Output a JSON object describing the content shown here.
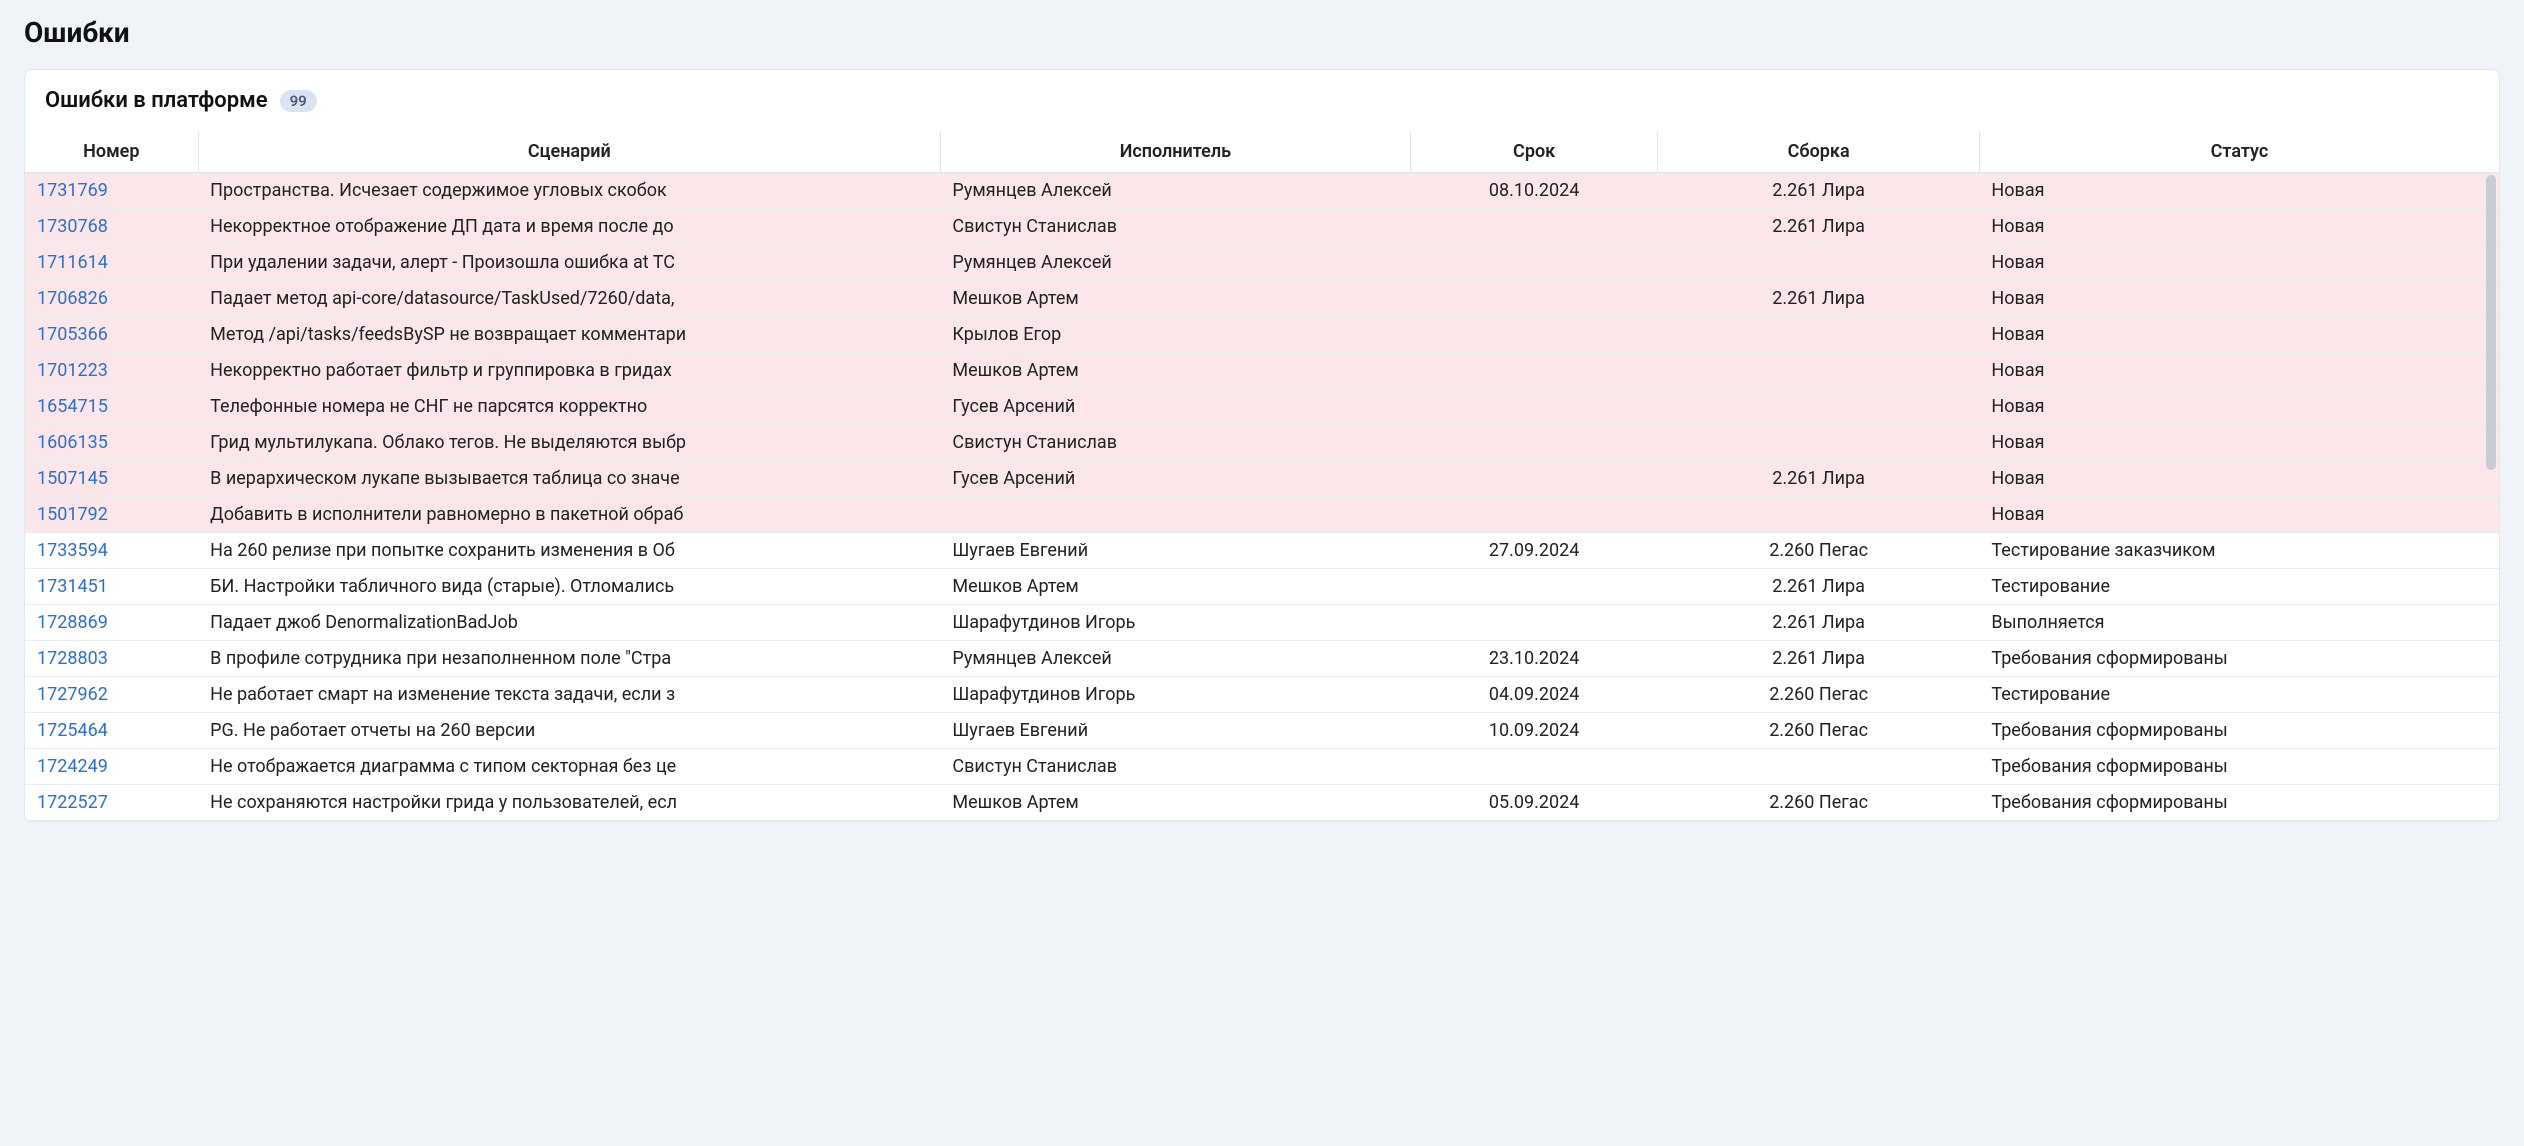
{
  "page": {
    "title": "Ошибки"
  },
  "card": {
    "title": "Ошибки в платформе",
    "count": "99"
  },
  "colors": {
    "highlight_row_bg": "#fbe7ea",
    "link": "#2a6fd6",
    "border": "#e2e6eb",
    "page_bg": "#f0f3f7",
    "badge_bg": "#dbe3f2",
    "badge_fg": "#4a5a78"
  },
  "table": {
    "columns": [
      "Номер",
      "Сценарий",
      "Исполнитель",
      "Срок",
      "Сборка",
      "Статус"
    ],
    "rows": [
      {
        "num": "1731769",
        "scenario": "Пространства. Исчезает содержимое угловых скобок",
        "assignee": "Румянцев Алексей",
        "due": "08.10.2024",
        "build": "2.261 Лира",
        "status": "Новая",
        "hl": true
      },
      {
        "num": "1730768",
        "scenario": "Некорректное отображение ДП дата и время после до",
        "assignee": "Свистун Станислав",
        "due": "",
        "build": "2.261 Лира",
        "status": "Новая",
        "hl": true
      },
      {
        "num": "1711614",
        "scenario": "При удалении задачи, алерт - Произошла ошибка at TC",
        "assignee": "Румянцев Алексей",
        "due": "",
        "build": "",
        "status": "Новая",
        "hl": true
      },
      {
        "num": "1706826",
        "scenario": "Падает метод api-core/datasource/TaskUsed/7260/data,",
        "assignee": "Мешков Артем",
        "due": "",
        "build": "2.261 Лира",
        "status": "Новая",
        "hl": true
      },
      {
        "num": "1705366",
        "scenario": "Метод /api/tasks/feedsBySP не возвращает комментари",
        "assignee": "Крылов Егор",
        "due": "",
        "build": "",
        "status": "Новая",
        "hl": true
      },
      {
        "num": "1701223",
        "scenario": "Некорректно работает фильтр и группировка в гридах",
        "assignee": "Мешков Артем",
        "due": "",
        "build": "",
        "status": "Новая",
        "hl": true
      },
      {
        "num": "1654715",
        "scenario": "Телефонные номера не СНГ не парсятся корректно",
        "assignee": "Гусев Арсений",
        "due": "",
        "build": "",
        "status": "Новая",
        "hl": true
      },
      {
        "num": "1606135",
        "scenario": "Грид мультилукапа. Облако тегов. Не выделяются выбр",
        "assignee": "Свистун Станислав",
        "due": "",
        "build": "",
        "status": "Новая",
        "hl": true
      },
      {
        "num": "1507145",
        "scenario": "В иерархическом лукапе вызывается таблица со значе",
        "assignee": "Гусев Арсений",
        "due": "",
        "build": "2.261 Лира",
        "status": "Новая",
        "hl": true
      },
      {
        "num": "1501792",
        "scenario": "Добавить в исполнители равномерно в пакетной обраб",
        "assignee": "",
        "due": "",
        "build": "",
        "status": "Новая",
        "hl": true
      },
      {
        "num": "1733594",
        "scenario": "На 260 релизе при попытке сохранить изменения в Об",
        "assignee": "Шугаев Евгений",
        "due": "27.09.2024",
        "build": "2.260 Пегас",
        "status": "Тестирование заказчиком",
        "hl": false
      },
      {
        "num": "1731451",
        "scenario": "БИ. Настройки табличного вида (старые). Отломались",
        "assignee": "Мешков Артем",
        "due": "",
        "build": "2.261 Лира",
        "status": "Тестирование",
        "hl": false
      },
      {
        "num": "1728869",
        "scenario": "Падает джоб DenormalizationBadJob",
        "assignee": "Шарафутдинов Игорь",
        "due": "",
        "build": "2.261 Лира",
        "status": "Выполняется",
        "hl": false
      },
      {
        "num": "1728803",
        "scenario": "В профиле сотрудника при незаполненном поле \"Стра",
        "assignee": "Румянцев Алексей",
        "due": "23.10.2024",
        "build": "2.261 Лира",
        "status": "Требования сформированы",
        "hl": false
      },
      {
        "num": "1727962",
        "scenario": "Не работает смарт на изменение текста задачи, если з",
        "assignee": "Шарафутдинов Игорь",
        "due": "04.09.2024",
        "build": "2.260 Пегас",
        "status": "Тестирование",
        "hl": false
      },
      {
        "num": "1725464",
        "scenario": "PG. Не работает отчеты на 260 версии",
        "assignee": "Шугаев Евгений",
        "due": "10.09.2024",
        "build": "2.260 Пегас",
        "status": "Требования сформированы",
        "hl": false
      },
      {
        "num": "1724249",
        "scenario": "Не отображается диаграмма с типом секторная без це",
        "assignee": "Свистун Станислав",
        "due": "",
        "build": "",
        "status": "Требования сформированы",
        "hl": false
      },
      {
        "num": "1722527",
        "scenario": "Не сохраняются настройки грида у пользователей, есл",
        "assignee": "Мешков Артем",
        "due": "05.09.2024",
        "build": "2.260 Пегас",
        "status": "Требования сформированы",
        "hl": false
      }
    ]
  }
}
